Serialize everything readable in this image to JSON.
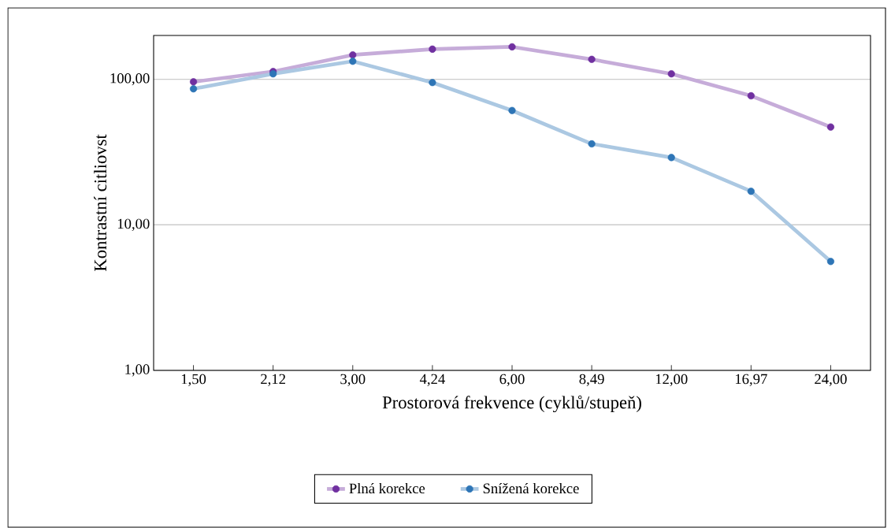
{
  "chart_data": {
    "type": "line",
    "xlabel": "Prostorová frekvence  (cyklů/stupeň)",
    "ylabel": "Kontrastní citliovst",
    "categories": [
      "1,50",
      "2,12",
      "3,00",
      "4,24",
      "6,00",
      "8,49",
      "12,00",
      "16,97",
      "24,00"
    ],
    "series": [
      {
        "name": "Plná korekce",
        "color": "#7030a0",
        "values": [
          96,
          113,
          147,
          161,
          167,
          137,
          109,
          77,
          47
        ]
      },
      {
        "name": "Snížená korekce",
        "color": "#2e75b6",
        "values": [
          86,
          109,
          133,
          95,
          61,
          36,
          29,
          17,
          5.6
        ]
      }
    ],
    "log": "y",
    "ylim": [
      1,
      200
    ],
    "yticks": [
      {
        "value": 1,
        "label": "1,00"
      },
      {
        "value": 10,
        "label": "10,00"
      },
      {
        "value": 100,
        "label": "100,00"
      }
    ],
    "grid": "y",
    "legend": "bottom",
    "marker": "circle",
    "line_style": "solid"
  }
}
